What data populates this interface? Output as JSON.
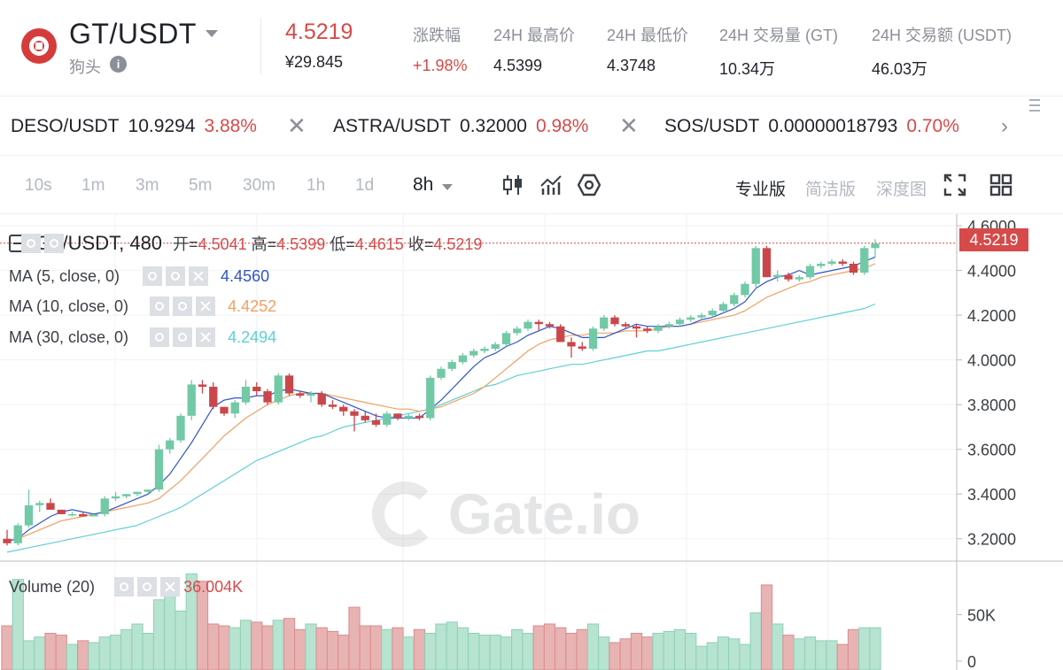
{
  "header": {
    "pair": "GT/USDT",
    "subtitle": "狗头",
    "info_icon": "info-icon",
    "last_price": "4.5219",
    "last_price_cny": "¥29.845",
    "stats": [
      {
        "label": "涨跌幅",
        "value": "+1.98%",
        "color": "#d64a4a"
      },
      {
        "label": "24H 最高价",
        "value": "4.5399"
      },
      {
        "label": "24H 最低价",
        "value": "4.3748"
      },
      {
        "label": "24H 交易量 (GT)",
        "value": "10.34万"
      },
      {
        "label": "24H 交易额 (USDT)",
        "value": "46.03万"
      }
    ]
  },
  "ticker": [
    {
      "symbol": "DESO/USDT",
      "price": "10.9294",
      "change": "3.88%"
    },
    {
      "symbol": "ASTRA/USDT",
      "price": "0.32000",
      "change": "0.98%"
    },
    {
      "symbol": "SOS/USDT",
      "price": "0.00000018793",
      "change": "0.70%"
    }
  ],
  "toolbar": {
    "intervals": [
      "10s",
      "1m",
      "3m",
      "5m",
      "30m",
      "1h",
      "1d",
      "8h"
    ],
    "active_interval": "8h",
    "views": [
      "专业版",
      "简洁版",
      "深度图"
    ],
    "active_view": "专业版",
    "icons": [
      "candlestick-icon",
      "indicator-icon",
      "settings-icon",
      "fullscreen-icon",
      "grid-layout-icon"
    ]
  },
  "legend": {
    "main_title": "GT/USDT, 480",
    "open_label": "开=",
    "open": "4.5041",
    "high_label": "高=",
    "high": "4.5399",
    "low_label": "低=",
    "low": "4.4615",
    "close_label": "收=",
    "close": "4.5219",
    "ma": [
      {
        "label": "MA (5, close, 0)",
        "value": "4.4560",
        "color": "#2f54c8"
      },
      {
        "label": "MA (10, close, 0)",
        "value": "4.4252",
        "color": "#f0a060"
      },
      {
        "label": "MA (30, close, 0)",
        "value": "4.2494",
        "color": "#5fcfd6"
      }
    ],
    "volume_label": "Volume (20)",
    "volume_value": "36.004K"
  },
  "watermark": "Gate.io",
  "chart_data": {
    "type": "candlestick",
    "price_axis_ticks": [
      "4.6000",
      "4.4000",
      "4.2000",
      "4.0000",
      "3.8000",
      "3.6000",
      "3.4000",
      "3.2000"
    ],
    "price_axis_values": [
      4.6,
      4.4,
      4.2,
      4.0,
      3.8,
      3.6,
      3.4,
      3.2
    ],
    "volume_axis_ticks": [
      "50K",
      "0"
    ],
    "volume_axis_values": [
      50000,
      0
    ],
    "current_price": "4.5219",
    "up_color": "#72c9a6",
    "down_color": "#c9474b",
    "candles": [
      [
        3.2,
        3.24,
        3.17,
        3.18
      ],
      [
        3.18,
        3.27,
        3.17,
        3.26
      ],
      [
        3.26,
        3.42,
        3.25,
        3.35
      ],
      [
        3.35,
        3.37,
        3.32,
        3.36
      ],
      [
        3.36,
        3.38,
        3.33,
        3.33
      ],
      [
        3.33,
        3.33,
        3.31,
        3.31
      ],
      [
        3.31,
        3.32,
        3.3,
        3.31
      ],
      [
        3.31,
        3.32,
        3.3,
        3.3
      ],
      [
        3.3,
        3.31,
        3.3,
        3.31
      ],
      [
        3.31,
        3.39,
        3.3,
        3.38
      ],
      [
        3.38,
        3.41,
        3.37,
        3.39
      ],
      [
        3.39,
        3.4,
        3.38,
        3.4
      ],
      [
        3.4,
        3.41,
        3.39,
        3.41
      ],
      [
        3.41,
        3.42,
        3.4,
        3.42
      ],
      [
        3.42,
        3.62,
        3.41,
        3.6
      ],
      [
        3.6,
        3.65,
        3.58,
        3.64
      ],
      [
        3.64,
        3.76,
        3.63,
        3.75
      ],
      [
        3.75,
        3.91,
        3.73,
        3.89
      ],
      [
        3.89,
        3.91,
        3.85,
        3.88
      ],
      [
        3.88,
        3.9,
        3.78,
        3.79
      ],
      [
        3.79,
        3.79,
        3.75,
        3.76
      ],
      [
        3.76,
        3.82,
        3.74,
        3.81
      ],
      [
        3.81,
        3.91,
        3.8,
        3.88
      ],
      [
        3.88,
        3.9,
        3.84,
        3.86
      ],
      [
        3.86,
        3.87,
        3.8,
        3.81
      ],
      [
        3.81,
        3.94,
        3.8,
        3.93
      ],
      [
        3.93,
        3.94,
        3.84,
        3.85
      ],
      [
        3.85,
        3.86,
        3.83,
        3.84
      ],
      [
        3.84,
        3.86,
        3.81,
        3.85
      ],
      [
        3.85,
        3.86,
        3.79,
        3.8
      ],
      [
        3.8,
        3.82,
        3.78,
        3.79
      ],
      [
        3.79,
        3.8,
        3.75,
        3.77
      ],
      [
        3.77,
        3.78,
        3.68,
        3.75
      ],
      [
        3.75,
        3.77,
        3.72,
        3.73
      ],
      [
        3.73,
        3.76,
        3.7,
        3.71
      ],
      [
        3.71,
        3.77,
        3.7,
        3.76
      ],
      [
        3.76,
        3.76,
        3.73,
        3.74
      ],
      [
        3.74,
        3.76,
        3.73,
        3.75
      ],
      [
        3.75,
        3.76,
        3.73,
        3.74
      ],
      [
        3.74,
        3.93,
        3.73,
        3.92
      ],
      [
        3.92,
        3.97,
        3.91,
        3.96
      ],
      [
        3.96,
        4.0,
        3.95,
        3.99
      ],
      [
        3.99,
        4.03,
        3.98,
        4.02
      ],
      [
        4.02,
        4.05,
        4.01,
        4.04
      ],
      [
        4.04,
        4.06,
        4.03,
        4.05
      ],
      [
        4.05,
        4.08,
        4.04,
        4.07
      ],
      [
        4.07,
        4.13,
        4.06,
        4.12
      ],
      [
        4.12,
        4.15,
        4.11,
        4.14
      ],
      [
        4.14,
        4.18,
        4.13,
        4.17
      ],
      [
        4.17,
        4.18,
        4.13,
        4.16
      ],
      [
        4.16,
        4.17,
        4.14,
        4.15
      ],
      [
        4.15,
        4.16,
        4.08,
        4.08
      ],
      [
        4.08,
        4.1,
        4.01,
        4.06
      ],
      [
        4.06,
        4.08,
        4.04,
        4.05
      ],
      [
        4.05,
        4.15,
        4.04,
        4.14
      ],
      [
        4.14,
        4.2,
        4.13,
        4.19
      ],
      [
        4.19,
        4.2,
        4.15,
        4.16
      ],
      [
        4.16,
        4.17,
        4.14,
        4.15
      ],
      [
        4.15,
        4.16,
        4.1,
        4.14
      ],
      [
        4.14,
        4.15,
        4.12,
        4.13
      ],
      [
        4.13,
        4.16,
        4.12,
        4.15
      ],
      [
        4.15,
        4.17,
        4.14,
        4.16
      ],
      [
        4.16,
        4.19,
        4.15,
        4.18
      ],
      [
        4.18,
        4.2,
        4.17,
        4.19
      ],
      [
        4.19,
        4.21,
        4.18,
        4.2
      ],
      [
        4.2,
        4.23,
        4.19,
        4.22
      ],
      [
        4.22,
        4.26,
        4.21,
        4.25
      ],
      [
        4.25,
        4.3,
        4.24,
        4.29
      ],
      [
        4.29,
        4.35,
        4.28,
        4.34
      ],
      [
        4.34,
        4.51,
        4.32,
        4.5
      ],
      [
        4.5,
        4.51,
        4.37,
        4.37
      ],
      [
        4.37,
        4.4,
        4.35,
        4.38
      ],
      [
        4.38,
        4.39,
        4.35,
        4.36
      ],
      [
        4.36,
        4.38,
        4.35,
        4.37
      ],
      [
        4.37,
        4.43,
        4.36,
        4.42
      ],
      [
        4.42,
        4.44,
        4.41,
        4.43
      ],
      [
        4.43,
        4.45,
        4.42,
        4.44
      ],
      [
        4.44,
        4.45,
        4.42,
        4.43
      ],
      [
        4.43,
        4.44,
        4.38,
        4.39
      ],
      [
        4.39,
        4.51,
        4.38,
        4.5
      ],
      [
        4.5,
        4.54,
        4.46,
        4.52
      ]
    ],
    "volume": [
      38000,
      88000,
      22000,
      26000,
      30000,
      28000,
      18000,
      22000,
      20000,
      26000,
      28000,
      34000,
      40000,
      30000,
      66000,
      82000,
      54000,
      94000,
      86000,
      40000,
      38000,
      36000,
      44000,
      42000,
      38000,
      44000,
      46000,
      34000,
      40000,
      36000,
      32000,
      28000,
      58000,
      38000,
      38000,
      34000,
      36000,
      26000,
      34000,
      30000,
      40000,
      42000,
      36000,
      30000,
      28000,
      28000,
      26000,
      34000,
      30000,
      38000,
      40000,
      36000,
      30000,
      34000,
      40000,
      26000,
      20000,
      24000,
      30000,
      26000,
      30000,
      32000,
      34000,
      30000,
      16000,
      20000,
      26000,
      24000,
      18000,
      52000,
      82000,
      40000,
      28000,
      24000,
      26000,
      22000,
      22000,
      18000,
      34000,
      36000,
      36000
    ],
    "ma5": [
      3.19,
      3.2,
      3.24,
      3.27,
      3.3,
      3.32,
      3.33,
      3.32,
      3.31,
      3.32,
      3.34,
      3.36,
      3.38,
      3.4,
      3.44,
      3.49,
      3.56,
      3.63,
      3.71,
      3.79,
      3.82,
      3.83,
      3.83,
      3.84,
      3.84,
      3.86,
      3.87,
      3.86,
      3.85,
      3.85,
      3.83,
      3.81,
      3.79,
      3.77,
      3.75,
      3.74,
      3.74,
      3.74,
      3.74,
      3.78,
      3.82,
      3.87,
      3.92,
      3.97,
      4.01,
      4.03,
      4.06,
      4.08,
      4.11,
      4.13,
      4.15,
      4.14,
      4.12,
      4.1,
      4.1,
      4.1,
      4.12,
      4.14,
      4.16,
      4.15,
      4.15,
      4.15,
      4.15,
      4.16,
      4.18,
      4.19,
      4.21,
      4.23,
      4.26,
      4.32,
      4.35,
      4.37,
      4.38,
      4.4,
      4.38,
      4.39,
      4.4,
      4.41,
      4.42,
      4.44,
      4.46
    ],
    "ma10": [
      3.19,
      3.2,
      3.22,
      3.24,
      3.26,
      3.28,
      3.29,
      3.3,
      3.31,
      3.32,
      3.33,
      3.34,
      3.35,
      3.36,
      3.38,
      3.42,
      3.46,
      3.51,
      3.56,
      3.61,
      3.66,
      3.7,
      3.74,
      3.77,
      3.8,
      3.82,
      3.84,
      3.85,
      3.85,
      3.85,
      3.84,
      3.83,
      3.82,
      3.81,
      3.8,
      3.79,
      3.78,
      3.78,
      3.77,
      3.78,
      3.79,
      3.81,
      3.83,
      3.85,
      3.88,
      3.92,
      3.96,
      4.0,
      4.04,
      4.07,
      4.09,
      4.1,
      4.11,
      4.11,
      4.12,
      4.12,
      4.12,
      4.13,
      4.13,
      4.13,
      4.14,
      4.15,
      4.15,
      4.16,
      4.17,
      4.18,
      4.19,
      4.2,
      4.22,
      4.25,
      4.28,
      4.3,
      4.32,
      4.34,
      4.35,
      4.37,
      4.38,
      4.39,
      4.4,
      4.41,
      4.43
    ],
    "ma30": [
      3.14,
      3.15,
      3.16,
      3.17,
      3.18,
      3.19,
      3.2,
      3.21,
      3.22,
      3.23,
      3.24,
      3.25,
      3.26,
      3.28,
      3.3,
      3.32,
      3.34,
      3.37,
      3.4,
      3.43,
      3.46,
      3.49,
      3.52,
      3.55,
      3.57,
      3.59,
      3.61,
      3.63,
      3.65,
      3.66,
      3.68,
      3.7,
      3.71,
      3.72,
      3.73,
      3.74,
      3.75,
      3.76,
      3.77,
      3.78,
      3.8,
      3.82,
      3.84,
      3.86,
      3.88,
      3.89,
      3.91,
      3.93,
      3.94,
      3.95,
      3.96,
      3.97,
      3.98,
      3.98,
      3.99,
      4.0,
      4.01,
      4.02,
      4.03,
      4.04,
      4.04,
      4.05,
      4.06,
      4.07,
      4.08,
      4.09,
      4.1,
      4.11,
      4.12,
      4.13,
      4.14,
      4.15,
      4.16,
      4.17,
      4.18,
      4.19,
      4.2,
      4.21,
      4.22,
      4.23,
      4.25
    ]
  }
}
